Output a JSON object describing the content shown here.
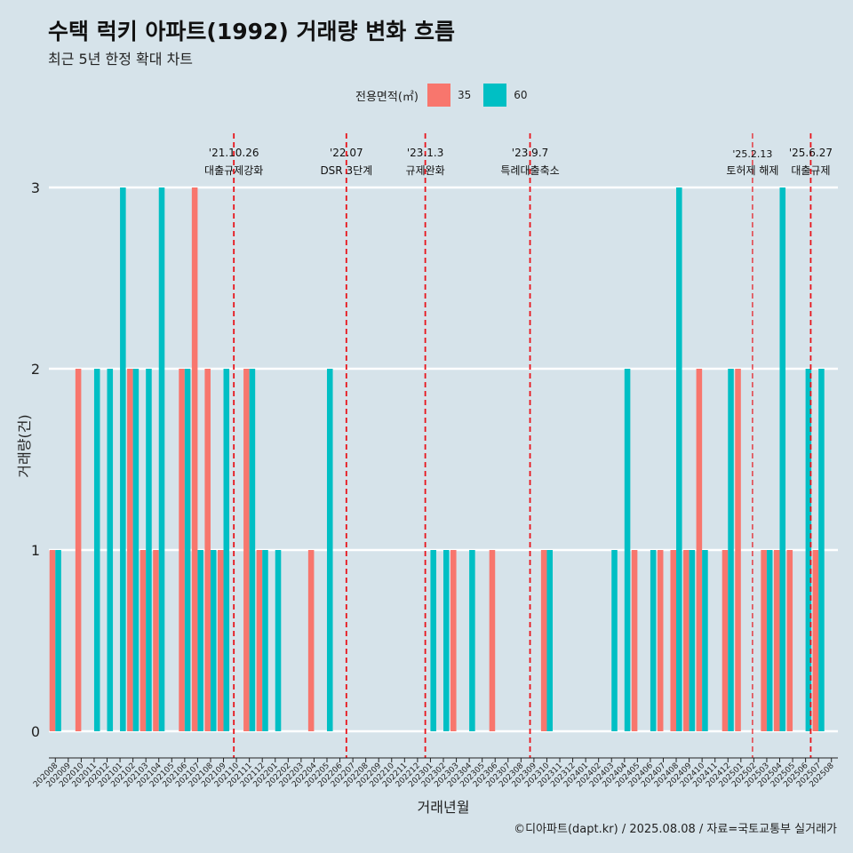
{
  "title": "수택 럭키 아파트(1992) 거래량 변화 흐름",
  "subtitle": "최근 5년 한정 확대 차트",
  "caption": "©디아파트(dapt.kr) / 2025.08.08 / 자료=국토교통부 실거래가",
  "legend": {
    "title": "전용면적(㎡)",
    "items": [
      {
        "label": "35",
        "color": "#f8766d"
      },
      {
        "label": "60",
        "color": "#00bfc4"
      }
    ]
  },
  "chart_data": {
    "type": "bar",
    "xlabel": "거래년월",
    "ylabel": "거래량(건)",
    "ylim": [
      0,
      3
    ],
    "yticks": [
      0,
      1,
      2,
      3
    ],
    "grid": "horizontal",
    "legend_position": "top",
    "categories": [
      "202008",
      "202009",
      "202010",
      "202011",
      "202012",
      "202101",
      "202102",
      "202103",
      "202104",
      "202105",
      "202106",
      "202107",
      "202108",
      "202109",
      "202110",
      "202111",
      "202112",
      "202201",
      "202202",
      "202203",
      "202204",
      "202205",
      "202206",
      "202207",
      "202208",
      "202209",
      "202210",
      "202211",
      "202212",
      "202301",
      "202302",
      "202303",
      "202304",
      "202305",
      "202306",
      "202307",
      "202308",
      "202309",
      "202310",
      "202311",
      "202312",
      "202401",
      "202402",
      "202403",
      "202404",
      "202405",
      "202406",
      "202407",
      "202408",
      "202409",
      "202410",
      "202411",
      "202412",
      "202501",
      "202502",
      "202503",
      "202504",
      "202505",
      "202506",
      "202507",
      "202508"
    ],
    "series": [
      {
        "name": "35",
        "color": "#f8766d",
        "values": [
          1,
          0,
          2,
          0,
          0,
          0,
          2,
          1,
          1,
          0,
          2,
          3,
          2,
          1,
          0,
          2,
          1,
          0,
          0,
          0,
          1,
          0,
          0,
          0,
          0,
          0,
          0,
          0,
          0,
          0,
          0,
          1,
          0,
          0,
          1,
          0,
          0,
          0,
          1,
          0,
          0,
          0,
          0,
          0,
          0,
          1,
          0,
          1,
          1,
          1,
          2,
          0,
          1,
          2,
          0,
          1,
          1,
          1,
          0,
          1,
          0
        ]
      },
      {
        "name": "60",
        "color": "#00bfc4",
        "values": [
          1,
          0,
          0,
          2,
          2,
          3,
          2,
          2,
          3,
          0,
          2,
          1,
          1,
          2,
          0,
          2,
          1,
          1,
          0,
          0,
          0,
          2,
          0,
          0,
          0,
          0,
          0,
          0,
          0,
          1,
          1,
          0,
          1,
          0,
          0,
          0,
          0,
          0,
          1,
          0,
          0,
          0,
          0,
          1,
          2,
          0,
          1,
          0,
          3,
          1,
          1,
          0,
          2,
          0,
          0,
          1,
          3,
          0,
          2,
          2,
          0
        ]
      }
    ],
    "annotations": [
      {
        "date": "'21.10.26",
        "text": "대출규제강화",
        "at": "202110",
        "offset": 0.3
      },
      {
        "date": "'22.07",
        "text": "DSR 3단계",
        "at": "202207",
        "offset": 0.0
      },
      {
        "date": "'23.1.3",
        "text": "규제완화",
        "at": "202301",
        "offset": 0.1
      },
      {
        "date": "'23.9.7",
        "text": "특례대출축소",
        "at": "202309",
        "offset": 0.2
      },
      {
        "date": "'25.2.13",
        "text": "토허제 해제",
        "at": "202502",
        "offset": 0.4,
        "thin": true
      },
      {
        "date": "'25.6.27",
        "text": "대출규제",
        "at": "202506",
        "offset": 0.9
      }
    ]
  }
}
